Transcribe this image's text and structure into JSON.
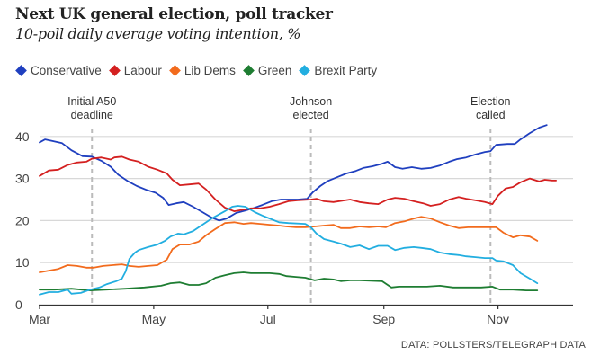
{
  "header": {
    "title": "Next UK general election, poll tracker",
    "subtitle": "10-poll daily average voting intention, %"
  },
  "source": "DATA: POLLSTERS/TELEGRAPH DATA",
  "chart_data": {
    "type": "line",
    "title": "Next UK general election, poll tracker",
    "subtitle": "10-poll daily average voting intention, %",
    "xlabel": "",
    "ylabel": "",
    "x_unit": "days since 1 March",
    "xlim": [
      0,
      286
    ],
    "ylim": [
      0,
      45
    ],
    "yticks": [
      0,
      10,
      20,
      30,
      40
    ],
    "xticks": [
      {
        "day": 0,
        "label": "Mar"
      },
      {
        "day": 61,
        "label": "May"
      },
      {
        "day": 122,
        "label": "Jul"
      },
      {
        "day": 184,
        "label": "Sep"
      },
      {
        "day": 245,
        "label": "Nov"
      }
    ],
    "grid": true,
    "legend_position": "top-left",
    "annotations": [
      {
        "day": 28,
        "lines": [
          "Initial A50",
          "deadline"
        ]
      },
      {
        "day": 145,
        "lines": [
          "Johnson",
          "elected"
        ]
      },
      {
        "day": 241,
        "lines": [
          "Election",
          "called"
        ]
      }
    ],
    "series": [
      {
        "name": "Conservative",
        "color": "#1f3fbf",
        "x": [
          0,
          3,
          8,
          12,
          17,
          23,
          28,
          33,
          38,
          42,
          47,
          52,
          57,
          62,
          66,
          69,
          73,
          77,
          82,
          87,
          92,
          96,
          100,
          105,
          110,
          114,
          119,
          124,
          129,
          133,
          138,
          143,
          146,
          150,
          154,
          159,
          164,
          169,
          173,
          178,
          183,
          186,
          190,
          194,
          199,
          204,
          209,
          214,
          219,
          223,
          228,
          233,
          238,
          241,
          244,
          250,
          254,
          257,
          262,
          267,
          271
        ],
        "values": [
          38.6,
          39.3,
          38.8,
          38.4,
          36.7,
          35.3,
          35.2,
          34.2,
          32.8,
          30.9,
          29.4,
          28.2,
          27.3,
          26.6,
          25.4,
          23.7,
          24.1,
          24.4,
          23.3,
          22.0,
          20.7,
          20.0,
          20.5,
          21.8,
          22.4,
          22.9,
          23.7,
          24.6,
          25.0,
          25.0,
          25.0,
          25.2,
          26.7,
          28.2,
          29.4,
          30.3,
          31.2,
          31.8,
          32.5,
          32.9,
          33.5,
          34.0,
          32.7,
          32.3,
          32.7,
          32.3,
          32.5,
          33.1,
          34.0,
          34.6,
          35.0,
          35.7,
          36.3,
          36.5,
          38.0,
          38.2,
          38.2,
          39.3,
          40.8,
          42.1,
          42.7
        ]
      },
      {
        "name": "Labour",
        "color": "#d42020",
        "x": [
          0,
          5,
          10,
          15,
          20,
          25,
          28,
          33,
          38,
          40,
          44,
          48,
          53,
          58,
          63,
          68,
          71,
          75,
          80,
          85,
          89,
          94,
          99,
          104,
          109,
          113,
          118,
          123,
          128,
          133,
          138,
          145,
          148,
          152,
          157,
          166,
          171,
          176,
          181,
          186,
          190,
          195,
          200,
          205,
          209,
          214,
          219,
          224,
          228,
          233,
          238,
          242,
          245,
          249,
          253,
          257,
          262,
          267,
          270,
          274,
          276
        ],
        "values": [
          30.6,
          31.9,
          32.1,
          33.2,
          33.8,
          34.0,
          34.7,
          35.0,
          34.5,
          35.0,
          35.2,
          34.5,
          34.0,
          32.8,
          32.1,
          31.2,
          29.7,
          28.4,
          28.6,
          28.8,
          27.4,
          25.0,
          23.1,
          22.2,
          22.6,
          22.9,
          22.9,
          23.3,
          23.9,
          24.6,
          24.8,
          25.0,
          25.2,
          24.6,
          24.4,
          25.0,
          24.4,
          24.1,
          23.9,
          25.0,
          25.4,
          25.2,
          24.6,
          24.1,
          23.5,
          23.9,
          25.0,
          25.6,
          25.2,
          24.8,
          24.4,
          23.9,
          25.9,
          27.6,
          28.0,
          29.1,
          30.0,
          29.3,
          29.7,
          29.5,
          29.5
        ]
      },
      {
        "name": "Lib Dems",
        "color": "#f26b1d",
        "x": [
          0,
          5,
          10,
          15,
          20,
          25,
          29,
          34,
          39,
          44,
          48,
          53,
          58,
          63,
          68,
          71,
          75,
          80,
          85,
          89,
          94,
          99,
          104,
          109,
          113,
          118,
          123,
          128,
          132,
          137,
          142,
          147,
          152,
          157,
          161,
          166,
          171,
          176,
          181,
          185,
          190,
          195,
          200,
          204,
          209,
          214,
          219,
          224,
          229,
          236,
          244,
          248,
          253,
          257,
          262,
          266
        ],
        "values": [
          7.7,
          8.1,
          8.5,
          9.4,
          9.2,
          8.8,
          8.8,
          9.2,
          9.4,
          9.6,
          9.2,
          9.0,
          9.2,
          9.4,
          10.7,
          13.2,
          14.3,
          14.3,
          15.0,
          16.5,
          18.0,
          19.4,
          19.6,
          19.2,
          19.4,
          19.2,
          19.0,
          18.8,
          18.6,
          18.4,
          18.4,
          18.6,
          18.8,
          19.0,
          18.2,
          18.2,
          18.6,
          18.4,
          18.6,
          18.4,
          19.4,
          19.8,
          20.5,
          20.9,
          20.5,
          19.6,
          18.8,
          18.2,
          18.4,
          18.4,
          18.4,
          17.1,
          16.0,
          16.5,
          16.2,
          15.2
        ]
      },
      {
        "name": "Green",
        "color": "#1e7d32",
        "x": [
          0,
          8,
          17,
          27,
          36,
          46,
          56,
          65,
          70,
          75,
          80,
          85,
          89,
          94,
          99,
          104,
          109,
          113,
          118,
          123,
          128,
          132,
          137,
          142,
          147,
          152,
          157,
          161,
          166,
          171,
          183,
          188,
          192,
          200,
          207,
          214,
          221,
          228,
          236,
          242,
          246,
          253,
          260,
          266
        ],
        "values": [
          3.6,
          3.6,
          3.8,
          3.4,
          3.6,
          3.8,
          4.1,
          4.5,
          5.1,
          5.3,
          4.7,
          4.7,
          5.1,
          6.4,
          7.0,
          7.5,
          7.7,
          7.5,
          7.5,
          7.5,
          7.3,
          6.8,
          6.6,
          6.4,
          5.8,
          6.2,
          6.0,
          5.6,
          5.8,
          5.8,
          5.6,
          4.1,
          4.3,
          4.3,
          4.3,
          4.5,
          4.1,
          4.1,
          4.1,
          4.3,
          3.6,
          3.6,
          3.4,
          3.4
        ]
      },
      {
        "name": "Brexit Party",
        "color": "#22aee0",
        "x": [
          0,
          5,
          10,
          15,
          17,
          22,
          27,
          32,
          36,
          41,
          44,
          46,
          48,
          51,
          53,
          58,
          63,
          67,
          70,
          74,
          77,
          82,
          87,
          92,
          99,
          103,
          106,
          110,
          115,
          119,
          124,
          128,
          133,
          142,
          145,
          148,
          152,
          157,
          161,
          166,
          171,
          176,
          181,
          186,
          190,
          195,
          200,
          204,
          209,
          214,
          219,
          224,
          228,
          233,
          238,
          242,
          244,
          248,
          253,
          257,
          262,
          266
        ],
        "values": [
          2.4,
          3.0,
          3.0,
          3.6,
          2.6,
          2.8,
          3.6,
          4.1,
          4.9,
          5.6,
          6.2,
          7.9,
          10.9,
          12.4,
          13.0,
          13.7,
          14.3,
          15.2,
          16.2,
          16.9,
          16.7,
          17.5,
          19.0,
          20.5,
          22.2,
          23.3,
          23.5,
          23.3,
          22.0,
          21.2,
          20.3,
          19.6,
          19.4,
          19.2,
          18.4,
          16.9,
          15.6,
          15.0,
          14.5,
          13.7,
          14.1,
          13.2,
          14.0,
          14.0,
          13.0,
          13.5,
          13.7,
          13.5,
          13.2,
          12.4,
          12.0,
          11.8,
          11.5,
          11.3,
          11.1,
          11.1,
          10.5,
          10.3,
          9.4,
          7.5,
          6.2,
          5.1
        ]
      }
    ]
  }
}
